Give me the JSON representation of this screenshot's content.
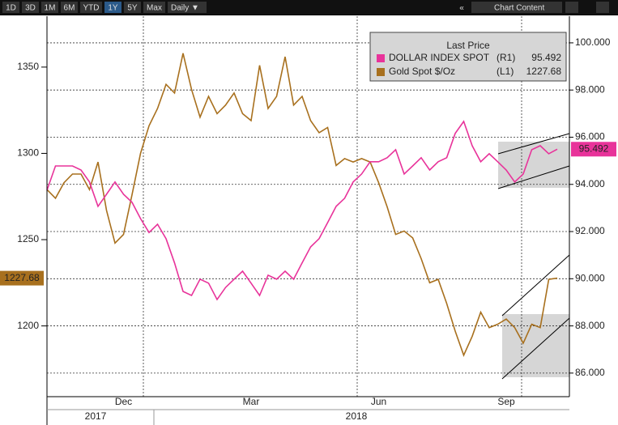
{
  "toolbar": {
    "ranges": [
      "1D",
      "3D",
      "1M",
      "6M",
      "YTD",
      "1Y",
      "5Y",
      "Max"
    ],
    "active_range": "1Y",
    "frequency": "Daily ▼",
    "collapse": "«",
    "chart_content": "Chart Content"
  },
  "chart_data": {
    "type": "line",
    "legend_title": "Last Price",
    "categories": [
      null,
      null,
      null,
      null,
      null,
      null,
      null,
      null,
      null,
      "Dec",
      null,
      null,
      null,
      null,
      null,
      null,
      null,
      null,
      null,
      null,
      null,
      null,
      null,
      null,
      "Mar",
      null,
      null,
      null,
      null,
      null,
      null,
      null,
      null,
      null,
      null,
      null,
      null,
      null,
      null,
      "Jun",
      null,
      null,
      null,
      null,
      null,
      null,
      null,
      null,
      null,
      null,
      null,
      null,
      null,
      null,
      "Sep",
      null,
      null,
      null,
      null,
      null,
      null
    ],
    "year_labels": [
      "2017",
      "2018"
    ],
    "series": [
      {
        "name": "DOLLAR INDEX SPOT",
        "axis_label": "(R1)",
        "axis": "y2",
        "color": "#e8339a",
        "values": [
          93.75,
          94.78,
          94.78,
          94.78,
          94.61,
          94.1,
          93.07,
          93.58,
          94.1,
          93.58,
          93.24,
          92.55,
          91.96,
          92.31,
          91.7,
          90.67,
          89.46,
          89.29,
          89.98,
          89.81,
          89.12,
          89.63,
          89.98,
          90.32,
          89.81,
          89.29,
          90.15,
          89.98,
          90.32,
          89.98,
          90.67,
          91.35,
          91.7,
          92.38,
          93.07,
          93.41,
          94.1,
          94.44,
          94.96,
          94.96,
          95.13,
          95.47,
          94.44,
          94.78,
          95.13,
          94.61,
          94.96,
          95.13,
          96.16,
          96.67,
          95.64,
          94.96,
          95.3,
          94.96,
          94.61,
          94.1,
          94.44,
          95.47,
          95.64,
          95.3,
          95.492
        ]
      },
      {
        "name": "Gold Spot $/Oz",
        "axis_label": "(L1)",
        "color": "#a8701e",
        "values": [
          1279,
          1274,
          1283,
          1288,
          1288,
          1279,
          1295,
          1267,
          1248,
          1253,
          1276,
          1300,
          1316,
          1326,
          1340,
          1335,
          1358,
          1337,
          1321,
          1333,
          1323,
          1328,
          1335,
          1323,
          1319,
          1351,
          1326,
          1333,
          1356,
          1328,
          1333,
          1319,
          1312,
          1315,
          1293,
          1297,
          1295,
          1297,
          1295,
          1283,
          1269,
          1253,
          1255,
          1251,
          1239,
          1225,
          1227,
          1213,
          1197,
          1183,
          1194,
          1208,
          1199,
          1201,
          1204,
          1199,
          1190,
          1201,
          1199,
          1227,
          1227.68
        ]
      }
    ],
    "ylim": [
      1159,
      1379.5
    ],
    "yticks": [
      1200,
      1250,
      1300,
      1350
    ],
    "y2lim": [
      85.0,
      101.13
    ],
    "y2ticks": [
      {
        "value": 86,
        "label": "86.000"
      },
      {
        "value": 88,
        "label": "88.000"
      },
      {
        "value": 90,
        "label": "90.000"
      },
      {
        "value": 92,
        "label": "92.000"
      },
      {
        "value": 94,
        "label": "94.000"
      },
      {
        "value": 96,
        "label": "96.000"
      },
      {
        "value": 98,
        "label": "98.000"
      },
      {
        "value": 100,
        "label": "100.000"
      }
    ],
    "grid": true
  }
}
